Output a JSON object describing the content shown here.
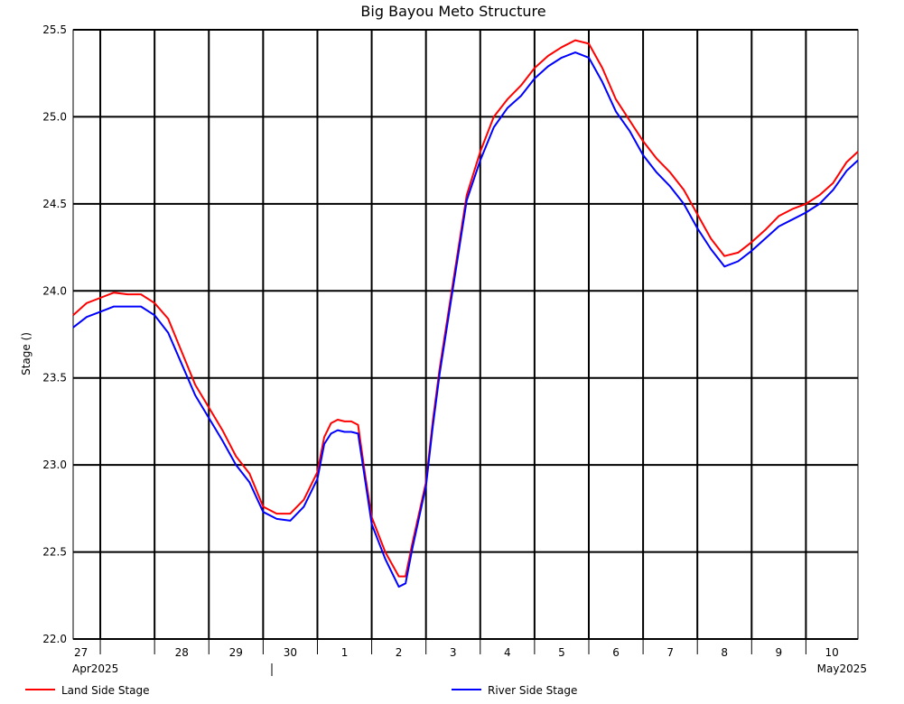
{
  "chart_data": {
    "type": "line",
    "title": "Big Bayou Meto Structure",
    "ylabel": "Stage ()",
    "xlabel": "",
    "ylim": [
      22.0,
      25.5
    ],
    "yticks": [
      "22.0",
      "22.5",
      "23.0",
      "23.5",
      "24.0",
      "24.5",
      "25.0",
      "25.5"
    ],
    "xlim": [
      "2025-04-26T12:00",
      "2025-05-10T23:00"
    ],
    "day_ticks": [
      {
        "label": "27",
        "date": "2025-04-27"
      },
      {
        "label": "28",
        "date": "2025-04-28"
      },
      {
        "label": "29",
        "date": "2025-04-29"
      },
      {
        "label": "30",
        "date": "2025-04-30"
      },
      {
        "label": "1",
        "date": "2025-05-01"
      },
      {
        "label": "2",
        "date": "2025-05-02"
      },
      {
        "label": "3",
        "date": "2025-05-03"
      },
      {
        "label": "4",
        "date": "2025-05-04"
      },
      {
        "label": "5",
        "date": "2025-05-05"
      },
      {
        "label": "6",
        "date": "2025-05-06"
      },
      {
        "label": "7",
        "date": "2025-05-07"
      },
      {
        "label": "8",
        "date": "2025-05-08"
      },
      {
        "label": "9",
        "date": "2025-05-09"
      },
      {
        "label": "10",
        "date": "2025-05-10"
      }
    ],
    "month_labels": [
      "Apr2025",
      "May2025"
    ],
    "grid": true,
    "legend_position": "bottom",
    "series": [
      {
        "name": "Land Side Stage",
        "color": "#ff0000",
        "points": [
          [
            "2025-04-26T12:00",
            23.86
          ],
          [
            "2025-04-26T18:00",
            23.93
          ],
          [
            "2025-04-27T00:00",
            23.96
          ],
          [
            "2025-04-27T06:00",
            23.99
          ],
          [
            "2025-04-27T12:00",
            23.98
          ],
          [
            "2025-04-27T18:00",
            23.98
          ],
          [
            "2025-04-28T00:00",
            23.93
          ],
          [
            "2025-04-28T06:00",
            23.84
          ],
          [
            "2025-04-28T12:00",
            23.65
          ],
          [
            "2025-04-28T18:00",
            23.46
          ],
          [
            "2025-04-29T00:00",
            23.33
          ],
          [
            "2025-04-29T06:00",
            23.2
          ],
          [
            "2025-04-29T12:00",
            23.05
          ],
          [
            "2025-04-29T18:00",
            22.95
          ],
          [
            "2025-04-30T00:00",
            22.76
          ],
          [
            "2025-04-30T06:00",
            22.72
          ],
          [
            "2025-04-30T12:00",
            22.72
          ],
          [
            "2025-04-30T18:00",
            22.8
          ],
          [
            "2025-05-01T00:00",
            22.96
          ],
          [
            "2025-05-01T03:00",
            23.16
          ],
          [
            "2025-05-01T06:00",
            23.24
          ],
          [
            "2025-05-01T09:00",
            23.26
          ],
          [
            "2025-05-01T12:00",
            23.25
          ],
          [
            "2025-05-01T15:00",
            23.25
          ],
          [
            "2025-05-01T18:00",
            23.23
          ],
          [
            "2025-05-01T21:00",
            22.95
          ],
          [
            "2025-05-02T00:00",
            22.7
          ],
          [
            "2025-05-02T06:00",
            22.5
          ],
          [
            "2025-05-02T12:00",
            22.36
          ],
          [
            "2025-05-02T15:00",
            22.36
          ],
          [
            "2025-05-02T18:00",
            22.55
          ],
          [
            "2025-05-03T00:00",
            22.9
          ],
          [
            "2025-05-03T03:00",
            23.25
          ],
          [
            "2025-05-03T06:00",
            23.55
          ],
          [
            "2025-05-03T12:00",
            24.05
          ],
          [
            "2025-05-03T18:00",
            24.55
          ],
          [
            "2025-05-04T00:00",
            24.8
          ],
          [
            "2025-05-04T06:00",
            25.0
          ],
          [
            "2025-05-04T12:00",
            25.1
          ],
          [
            "2025-05-04T18:00",
            25.18
          ],
          [
            "2025-05-05T00:00",
            25.28
          ],
          [
            "2025-05-05T06:00",
            25.35
          ],
          [
            "2025-05-05T12:00",
            25.4
          ],
          [
            "2025-05-05T18:00",
            25.44
          ],
          [
            "2025-05-06T00:00",
            25.42
          ],
          [
            "2025-05-06T06:00",
            25.28
          ],
          [
            "2025-05-06T12:00",
            25.1
          ],
          [
            "2025-05-06T18:00",
            24.98
          ],
          [
            "2025-05-07T00:00",
            24.86
          ],
          [
            "2025-05-07T06:00",
            24.76
          ],
          [
            "2025-05-07T12:00",
            24.68
          ],
          [
            "2025-05-07T18:00",
            24.58
          ],
          [
            "2025-05-08T00:00",
            24.44
          ],
          [
            "2025-05-08T06:00",
            24.3
          ],
          [
            "2025-05-08T12:00",
            24.2
          ],
          [
            "2025-05-08T18:00",
            24.22
          ],
          [
            "2025-05-09T00:00",
            24.28
          ],
          [
            "2025-05-09T06:00",
            24.35
          ],
          [
            "2025-05-09T12:00",
            24.43
          ],
          [
            "2025-05-09T18:00",
            24.47
          ],
          [
            "2025-05-10T00:00",
            24.5
          ],
          [
            "2025-05-10T06:00",
            24.55
          ],
          [
            "2025-05-10T12:00",
            24.62
          ],
          [
            "2025-05-10T18:00",
            24.74
          ],
          [
            "2025-05-10T23:00",
            24.8
          ]
        ]
      },
      {
        "name": "River Side Stage",
        "color": "#0000ff",
        "points": [
          [
            "2025-04-26T12:00",
            23.79
          ],
          [
            "2025-04-26T18:00",
            23.85
          ],
          [
            "2025-04-27T00:00",
            23.88
          ],
          [
            "2025-04-27T06:00",
            23.91
          ],
          [
            "2025-04-27T12:00",
            23.91
          ],
          [
            "2025-04-27T18:00",
            23.91
          ],
          [
            "2025-04-28T00:00",
            23.86
          ],
          [
            "2025-04-28T06:00",
            23.76
          ],
          [
            "2025-04-28T12:00",
            23.58
          ],
          [
            "2025-04-28T18:00",
            23.4
          ],
          [
            "2025-04-29T00:00",
            23.27
          ],
          [
            "2025-04-29T06:00",
            23.14
          ],
          [
            "2025-04-29T12:00",
            23.0
          ],
          [
            "2025-04-29T18:00",
            22.9
          ],
          [
            "2025-04-30T00:00",
            22.73
          ],
          [
            "2025-04-30T06:00",
            22.69
          ],
          [
            "2025-04-30T12:00",
            22.68
          ],
          [
            "2025-04-30T18:00",
            22.76
          ],
          [
            "2025-05-01T00:00",
            22.92
          ],
          [
            "2025-05-01T03:00",
            23.12
          ],
          [
            "2025-05-01T06:00",
            23.18
          ],
          [
            "2025-05-01T09:00",
            23.2
          ],
          [
            "2025-05-01T12:00",
            23.19
          ],
          [
            "2025-05-01T15:00",
            23.19
          ],
          [
            "2025-05-01T18:00",
            23.18
          ],
          [
            "2025-05-01T21:00",
            22.92
          ],
          [
            "2025-05-02T00:00",
            22.66
          ],
          [
            "2025-05-02T06:00",
            22.46
          ],
          [
            "2025-05-02T12:00",
            22.3
          ],
          [
            "2025-05-02T15:00",
            22.32
          ],
          [
            "2025-05-02T18:00",
            22.52
          ],
          [
            "2025-05-03T00:00",
            22.88
          ],
          [
            "2025-05-03T03:00",
            23.22
          ],
          [
            "2025-05-03T06:00",
            23.52
          ],
          [
            "2025-05-03T12:00",
            24.02
          ],
          [
            "2025-05-03T18:00",
            24.52
          ],
          [
            "2025-05-04T00:00",
            24.75
          ],
          [
            "2025-05-04T06:00",
            24.94
          ],
          [
            "2025-05-04T12:00",
            25.05
          ],
          [
            "2025-05-04T18:00",
            25.12
          ],
          [
            "2025-05-05T00:00",
            25.22
          ],
          [
            "2025-05-05T06:00",
            25.29
          ],
          [
            "2025-05-05T12:00",
            25.34
          ],
          [
            "2025-05-05T18:00",
            25.37
          ],
          [
            "2025-05-06T00:00",
            25.34
          ],
          [
            "2025-05-06T06:00",
            25.2
          ],
          [
            "2025-05-06T12:00",
            25.03
          ],
          [
            "2025-05-06T18:00",
            24.92
          ],
          [
            "2025-05-07T00:00",
            24.78
          ],
          [
            "2025-05-07T06:00",
            24.68
          ],
          [
            "2025-05-07T12:00",
            24.6
          ],
          [
            "2025-05-07T18:00",
            24.5
          ],
          [
            "2025-05-08T00:00",
            24.36
          ],
          [
            "2025-05-08T06:00",
            24.24
          ],
          [
            "2025-05-08T12:00",
            24.14
          ],
          [
            "2025-05-08T18:00",
            24.17
          ],
          [
            "2025-05-09T00:00",
            24.23
          ],
          [
            "2025-05-09T06:00",
            24.3
          ],
          [
            "2025-05-09T12:00",
            24.37
          ],
          [
            "2025-05-09T18:00",
            24.41
          ],
          [
            "2025-05-10T00:00",
            24.45
          ],
          [
            "2025-05-10T06:00",
            24.5
          ],
          [
            "2025-05-10T12:00",
            24.58
          ],
          [
            "2025-05-10T18:00",
            24.69
          ],
          [
            "2025-05-10T23:00",
            24.75
          ]
        ]
      }
    ]
  }
}
